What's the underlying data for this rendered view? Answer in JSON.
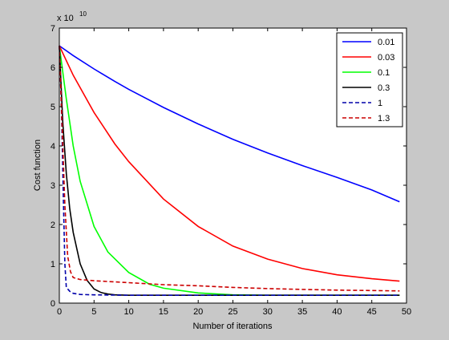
{
  "chart_data": {
    "type": "line",
    "xlabel": "Number of iterations",
    "ylabel": "Cost function",
    "y_exponent_label": "x 10",
    "y_exponent": "10",
    "xlim": [
      0,
      50
    ],
    "ylim": [
      0,
      7
    ],
    "xticks": [
      0,
      5,
      10,
      15,
      20,
      25,
      30,
      35,
      40,
      45,
      50
    ],
    "yticks": [
      0,
      1,
      2,
      3,
      4,
      5,
      6,
      7
    ],
    "legend_position": "top-right",
    "grid": false,
    "colors": {
      "figure_background": "#c8c8c8",
      "axes_background": "#ffffff"
    },
    "series": [
      {
        "name": "0.01",
        "color": "#0000ff",
        "style": "solid",
        "x": [
          0,
          2,
          5,
          8,
          10,
          15,
          20,
          25,
          30,
          35,
          40,
          45,
          49
        ],
        "y": [
          6.55,
          6.3,
          5.96,
          5.64,
          5.44,
          4.98,
          4.56,
          4.17,
          3.82,
          3.5,
          3.2,
          2.88,
          2.58
        ]
      },
      {
        "name": "0.03",
        "color": "#ff0000",
        "style": "solid",
        "x": [
          0,
          2,
          5,
          8,
          10,
          15,
          20,
          25,
          30,
          35,
          40,
          45,
          49
        ],
        "y": [
          6.55,
          5.8,
          4.85,
          4.05,
          3.6,
          2.65,
          1.95,
          1.45,
          1.12,
          0.88,
          0.72,
          0.62,
          0.56
        ]
      },
      {
        "name": "0.1",
        "color": "#00ff00",
        "style": "solid",
        "x": [
          0,
          1,
          2,
          3,
          5,
          7,
          10,
          13,
          15,
          20,
          25,
          30,
          40,
          49
        ],
        "y": [
          6.55,
          5.2,
          4.0,
          3.1,
          1.95,
          1.3,
          0.78,
          0.48,
          0.38,
          0.26,
          0.21,
          0.2,
          0.2,
          0.2
        ]
      },
      {
        "name": "0.3",
        "color": "#000000",
        "style": "solid",
        "x": [
          0,
          0.5,
          1,
          1.5,
          2,
          3,
          4,
          5,
          6,
          7,
          8,
          10,
          20,
          49
        ],
        "y": [
          6.55,
          4.6,
          3.3,
          2.4,
          1.8,
          1.0,
          0.58,
          0.36,
          0.27,
          0.23,
          0.21,
          0.2,
          0.2,
          0.2
        ]
      },
      {
        "name": "1",
        "color": "#0000aa",
        "style": "dashed",
        "x": [
          0,
          0.3,
          0.6,
          0.8,
          1,
          1.5,
          2,
          3,
          5,
          10,
          20,
          30,
          49
        ],
        "y": [
          6.55,
          5.0,
          2.5,
          1.0,
          0.4,
          0.3,
          0.25,
          0.22,
          0.21,
          0.2,
          0.2,
          0.2,
          0.2
        ]
      },
      {
        "name": "1.3",
        "color": "#cc0000",
        "style": "dashed",
        "x": [
          0,
          0.4,
          0.8,
          1.2,
          1.6,
          2,
          3,
          5,
          10,
          15,
          20,
          25,
          30,
          35,
          40,
          45,
          49
        ],
        "y": [
          6.55,
          4.5,
          2.5,
          1.2,
          0.8,
          0.65,
          0.6,
          0.57,
          0.52,
          0.47,
          0.44,
          0.4,
          0.37,
          0.35,
          0.33,
          0.32,
          0.31
        ]
      }
    ]
  }
}
